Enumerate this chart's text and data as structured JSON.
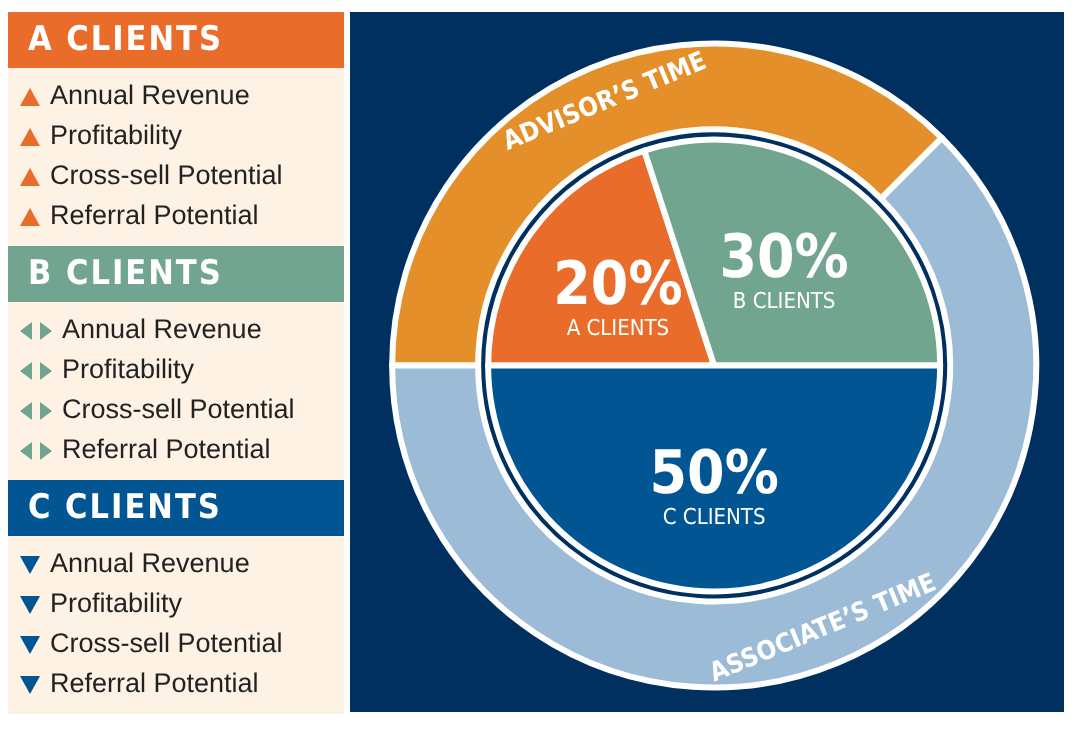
{
  "chart_data": [
    {
      "type": "other",
      "annotations": [
        "A CLIENTS",
        "Annual Revenue",
        "Profitability",
        "Cross-sell Potential",
        "Referral Potential",
        "B CLIENTS",
        "Annual Revenue",
        "Profitability",
        "Cross-sell Potential",
        "Referral Potential",
        "C CLIENTS",
        "Annual Revenue",
        "Profitability",
        "Cross-sell Potential",
        "Referral Potential"
      ]
    },
    {
      "type": "pie",
      "categories": [
        "A CLIENTS",
        "B CLIENTS",
        "C CLIENTS"
      ],
      "values": [
        20,
        30,
        50
      ],
      "value_labels": [
        "20%",
        "30%",
        "50%"
      ],
      "colors": [
        "#e96c2a",
        "#72a590",
        "#005592"
      ]
    },
    {
      "type": "donut",
      "categories": [
        "ADVISOR’S TIME",
        "ASSOCIATE’S TIME"
      ],
      "values": [
        37.5,
        62.5
      ],
      "colors": [
        "#e48f29",
        "#9bbbd6"
      ]
    }
  ]
}
